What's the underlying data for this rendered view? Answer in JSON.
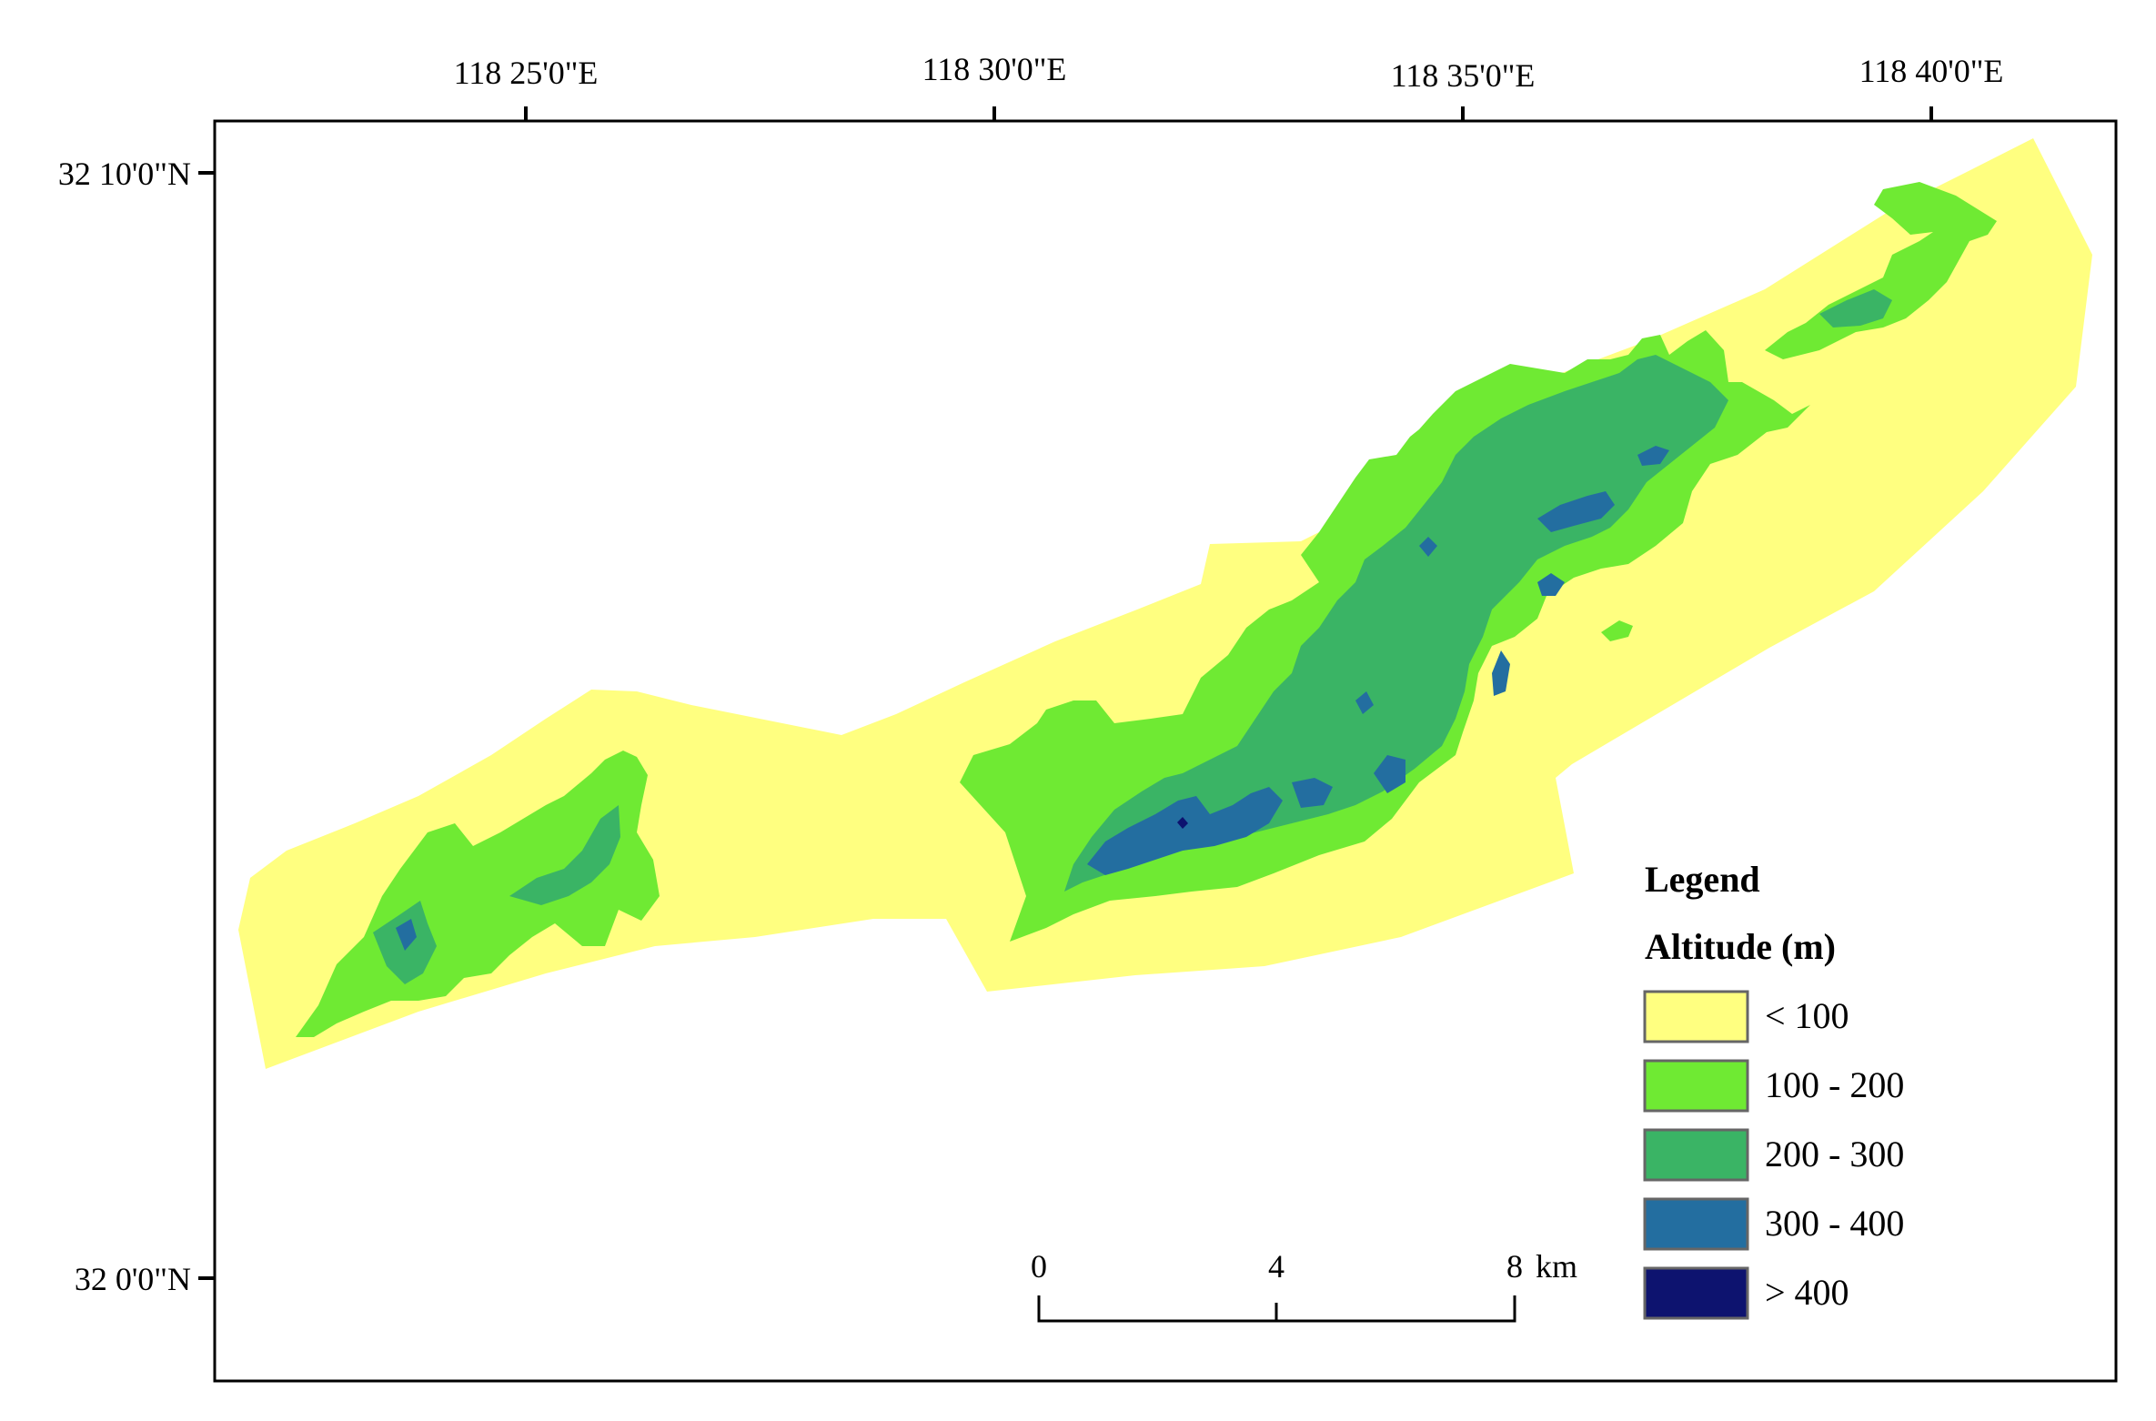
{
  "map": {
    "longitude_ticks": [
      "118 25'0\"E",
      "118 30'0\"E",
      "118 35'0\"E",
      "118 40'0\"E"
    ],
    "latitude_ticks": [
      "32 10'0\"N",
      "32 0'0\"N"
    ]
  },
  "legend": {
    "title": "Legend",
    "subtitle": "Altitude (m)",
    "classes": [
      {
        "label": "< 100",
        "color": "#ffff80"
      },
      {
        "label": "100 - 200",
        "color": "#6fea33"
      },
      {
        "label": "200 - 300",
        "color": "#3ab465"
      },
      {
        "label": "300 - 400",
        "color": "#236ea0"
      },
      {
        "label": "> 400",
        "color": "#0d136f"
      }
    ]
  },
  "scale_bar": {
    "labels": [
      "0",
      "4",
      "8"
    ],
    "unit": "km"
  }
}
